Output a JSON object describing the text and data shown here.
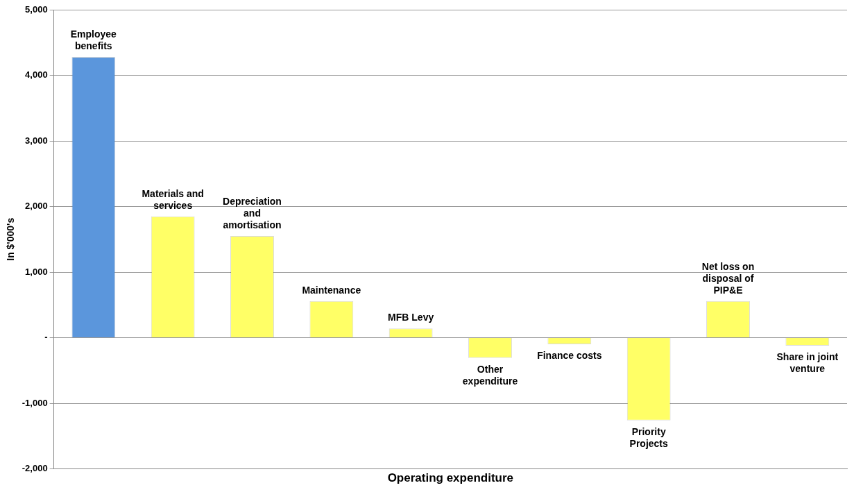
{
  "chart_data": {
    "type": "bar",
    "xlabel": "Operating expenditure",
    "ylabel": "In $'000's",
    "categories": [
      "Employee benefits",
      "Materials and services",
      "Depreciation and amortisation",
      "Maintenance",
      "MFB Levy",
      "Other expenditure",
      "Finance costs",
      "Priority Projects",
      "Net loss on disposal of PIP&E",
      "Share in joint venture"
    ],
    "values": [
      4280,
      1850,
      1550,
      560,
      140,
      -310,
      -100,
      -1260,
      560,
      -120
    ],
    "colors": [
      "#5b96dc",
      "#ffff66",
      "#ffff66",
      "#ffff66",
      "#ffff66",
      "#ffff66",
      "#ffff66",
      "#ffff66",
      "#ffff66",
      "#ffff66"
    ],
    "ylim": [
      -2000,
      5000
    ],
    "yticks": [
      {
        "value": -2000,
        "label": "-2,000"
      },
      {
        "value": -1000,
        "label": "-1,000"
      },
      {
        "value": 0,
        "label": "-"
      },
      {
        "value": 1000,
        "label": "1,000"
      },
      {
        "value": 2000,
        "label": "2,000"
      },
      {
        "value": 3000,
        "label": "3,000"
      },
      {
        "value": 4000,
        "label": "4,000"
      },
      {
        "value": 5000,
        "label": "5,000"
      }
    ],
    "grid": "y",
    "tick_labels": "y"
  }
}
